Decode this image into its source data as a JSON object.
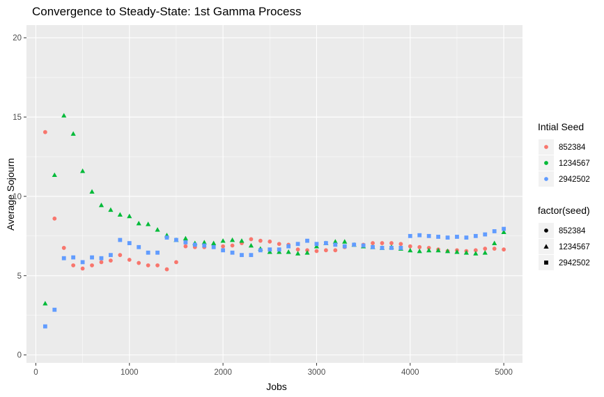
{
  "chart_data": {
    "type": "scatter",
    "title": "Convergence to Steady-State: 1st Gamma Process",
    "xlabel": "Jobs",
    "ylabel": "Average Sojourn",
    "xlim": [
      -100,
      5200
    ],
    "ylim": [
      -0.5,
      20.8
    ],
    "x_ticks": [
      0,
      1000,
      2000,
      3000,
      4000,
      5000
    ],
    "x_tick_labels": [
      "0",
      "1000",
      "2000",
      "3000",
      "4000",
      "5000"
    ],
    "y_ticks": [
      0,
      5,
      10,
      15,
      20
    ],
    "y_tick_labels": [
      "0",
      "5",
      "10",
      "15",
      "20"
    ],
    "grid": true,
    "legend_position": "right",
    "legends": [
      {
        "title": "Intial Seed",
        "kind": "color",
        "labels": [
          "852384",
          "1234567",
          "2942502"
        ]
      },
      {
        "title": "factor(seed)",
        "kind": "shape",
        "labels": [
          "852384",
          "1234567",
          "2942502"
        ]
      }
    ],
    "x": [
      100,
      200,
      300,
      400,
      500,
      600,
      700,
      800,
      900,
      1000,
      1100,
      1200,
      1300,
      1400,
      1500,
      1600,
      1700,
      1800,
      1900,
      2000,
      2100,
      2200,
      2300,
      2400,
      2500,
      2600,
      2700,
      2800,
      2900,
      3000,
      3100,
      3200,
      3300,
      3400,
      3500,
      3600,
      3700,
      3800,
      3900,
      4000,
      4100,
      4200,
      4300,
      4400,
      4500,
      4600,
      4700,
      4800,
      4900,
      5000
    ],
    "series": [
      {
        "name": "852384",
        "color": "#F8766D",
        "shape": "circle",
        "y": [
          14.05,
          8.6,
          6.75,
          5.65,
          5.45,
          5.65,
          5.85,
          5.95,
          6.3,
          6.0,
          5.8,
          5.65,
          5.65,
          5.4,
          5.85,
          6.85,
          6.8,
          6.8,
          6.9,
          6.85,
          6.9,
          7.05,
          7.3,
          7.2,
          7.15,
          7.0,
          6.95,
          6.65,
          6.6,
          6.55,
          6.6,
          6.6,
          6.8,
          6.95,
          6.95,
          7.05,
          7.05,
          7.05,
          7.0,
          6.85,
          6.8,
          6.75,
          6.65,
          6.55,
          6.6,
          6.55,
          6.6,
          6.7,
          6.7,
          6.65
        ]
      },
      {
        "name": "1234567",
        "color": "#00BA38",
        "shape": "triangle",
        "y": [
          3.25,
          11.35,
          15.1,
          13.95,
          11.6,
          10.3,
          9.45,
          9.15,
          8.85,
          8.75,
          8.3,
          8.25,
          7.9,
          7.55,
          7.25,
          7.35,
          7.05,
          7.1,
          7.05,
          7.2,
          7.25,
          7.2,
          6.9,
          6.7,
          6.5,
          6.5,
          6.5,
          6.4,
          6.45,
          6.85,
          7.05,
          7.15,
          7.15,
          6.95,
          6.85,
          6.8,
          6.75,
          6.8,
          6.7,
          6.6,
          6.55,
          6.6,
          6.6,
          6.55,
          6.5,
          6.45,
          6.4,
          6.45,
          7.05,
          7.75
        ]
      },
      {
        "name": "2942502",
        "color": "#619CFF",
        "shape": "square",
        "y": [
          1.8,
          2.85,
          6.1,
          6.15,
          5.85,
          6.15,
          6.1,
          6.3,
          7.25,
          7.05,
          6.8,
          6.45,
          6.45,
          7.4,
          7.25,
          7.1,
          6.95,
          6.9,
          6.8,
          6.6,
          6.45,
          6.3,
          6.3,
          6.6,
          6.65,
          6.65,
          6.85,
          7.0,
          7.2,
          7.0,
          7.05,
          6.95,
          6.85,
          6.95,
          6.9,
          6.8,
          6.75,
          6.75,
          6.75,
          7.5,
          7.55,
          7.5,
          7.45,
          7.4,
          7.45,
          7.4,
          7.5,
          7.6,
          7.8,
          7.95
        ]
      }
    ]
  }
}
